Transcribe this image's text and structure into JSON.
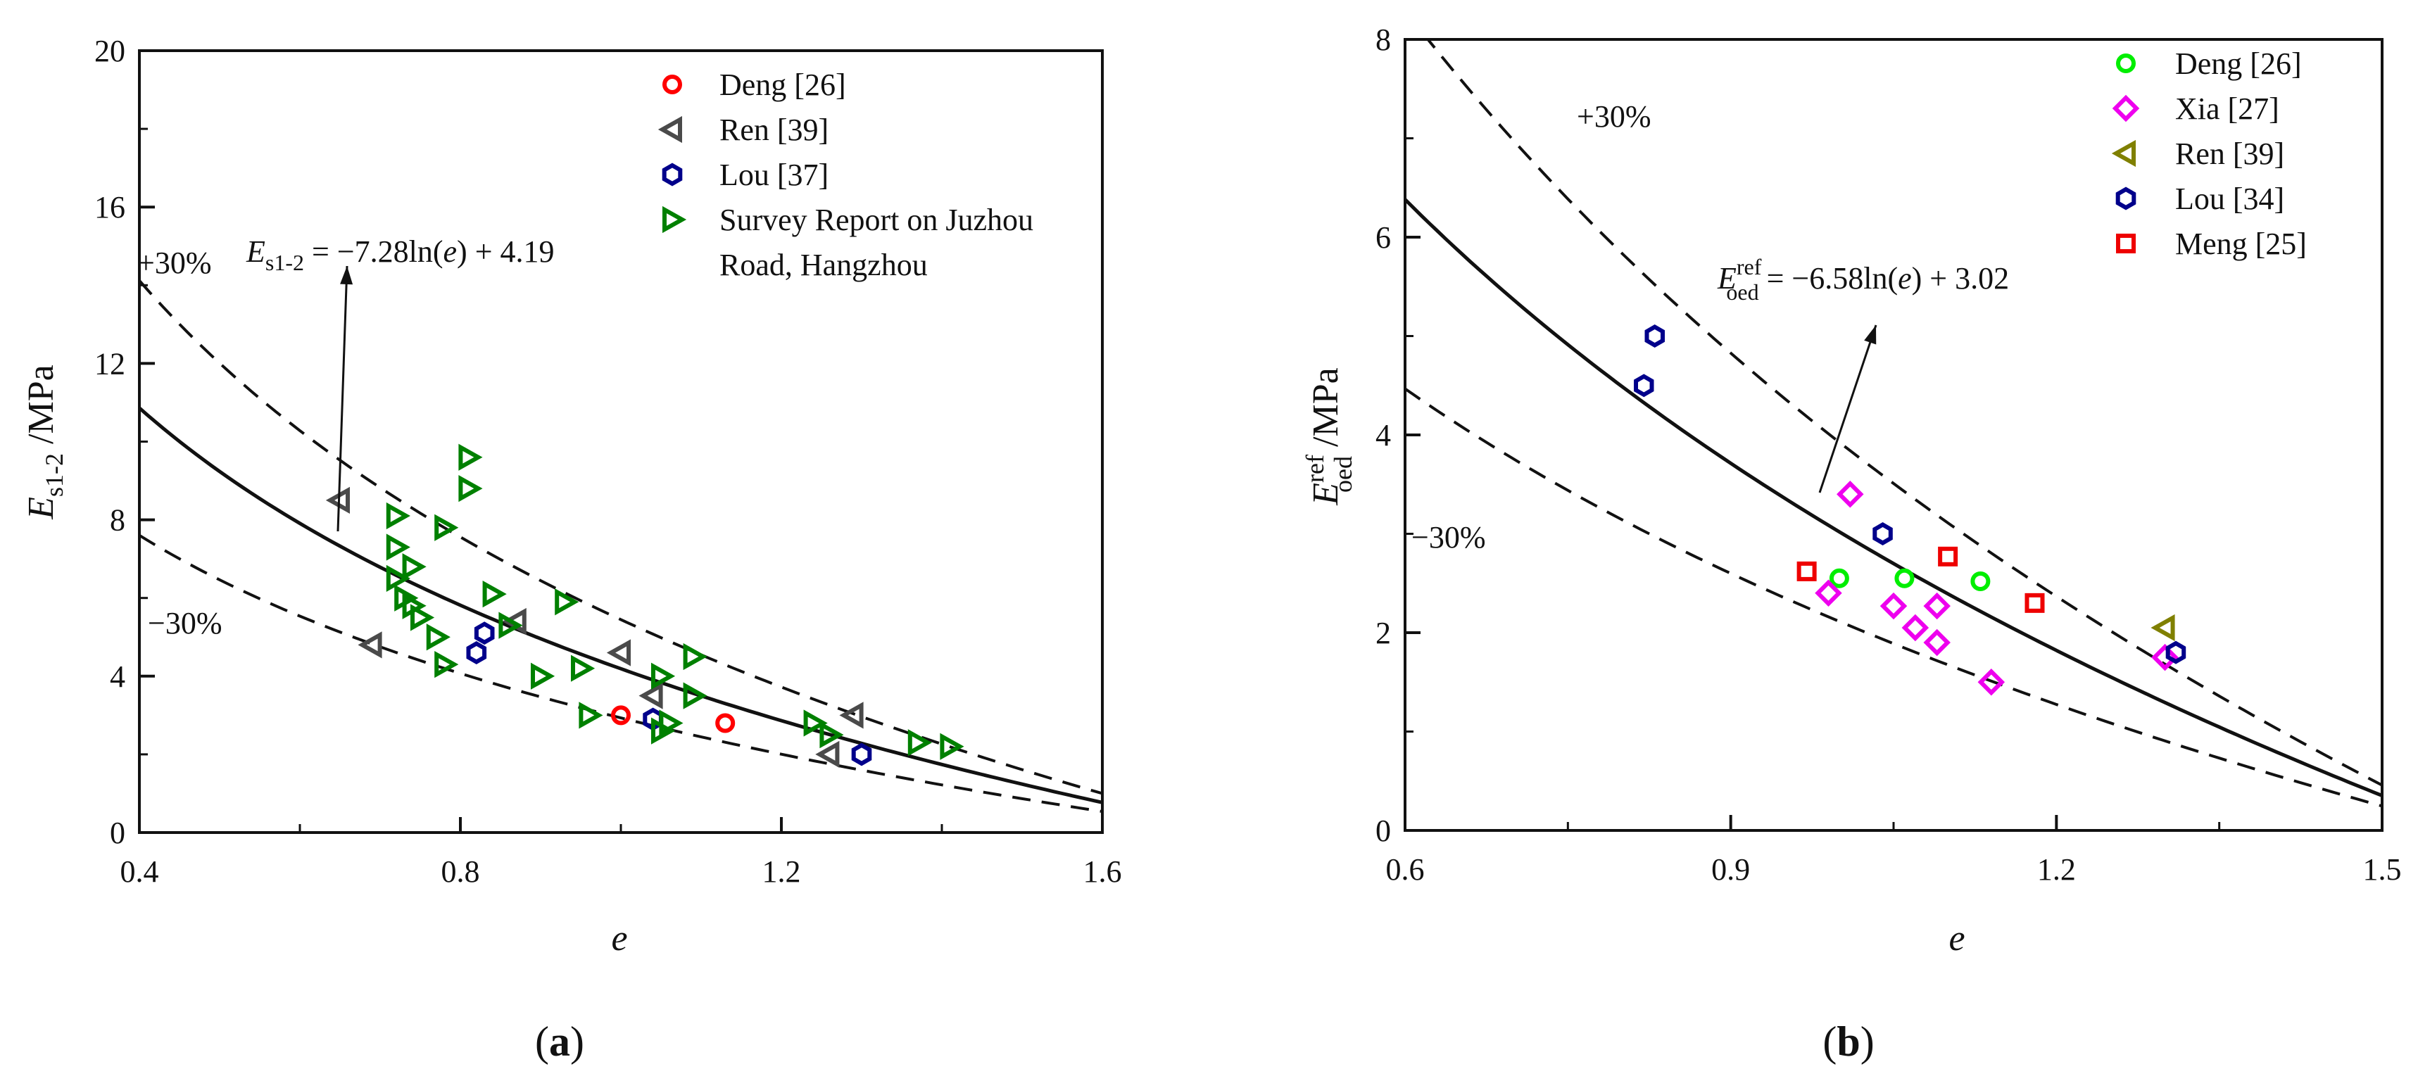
{
  "chart_data": [
    {
      "panel": "a",
      "panel_label": "(a)",
      "type": "scatter",
      "xlabel": "e",
      "ylabel": {
        "main": "E",
        "sub": "s1-2",
        "unit": " /MPa"
      },
      "xlim": [
        0.4,
        1.6
      ],
      "ylim": [
        0,
        20
      ],
      "xticks": [
        "0.4",
        "0.8",
        "1.2",
        "1.6"
      ],
      "yticks": [
        "0",
        "4",
        "8",
        "12",
        "16",
        "20"
      ],
      "x_minor_step": 0.2,
      "y_minor_step": 2,
      "legend_position": "top-right",
      "fit": {
        "a": -7.28,
        "b": 4.19,
        "range": [
          0.4,
          1.6
        ]
      },
      "equation": {
        "lhs_main": "E",
        "lhs_sub": "s1-2",
        "rhs_pre": " = −7.28ln(",
        "rhs_var": "e",
        "rhs_post": ") + 4.19"
      },
      "plus_label": "+30%",
      "minus_label": "−30%",
      "series": [
        {
          "name": "Deng [26]",
          "marker": "circle",
          "color": "#ff0000",
          "points": [
            [
              1.0,
              3.0
            ],
            [
              1.13,
              2.8
            ]
          ]
        },
        {
          "name": "Ren [39]",
          "marker": "triangle-left",
          "color": "#4a4a4a",
          "points": [
            [
              0.65,
              8.5
            ],
            [
              0.69,
              4.8
            ],
            [
              0.87,
              5.4
            ],
            [
              1.0,
              4.6
            ],
            [
              1.04,
              3.5
            ],
            [
              1.26,
              2.0
            ],
            [
              1.29,
              3.0
            ]
          ]
        },
        {
          "name": "Lou [37]",
          "marker": "hexagon",
          "color": "#00008b",
          "points": [
            [
              0.82,
              4.6
            ],
            [
              0.83,
              5.1
            ],
            [
              1.04,
              2.9
            ],
            [
              1.3,
              2.0
            ]
          ]
        },
        {
          "name": "Survey Report on Juzhou Road, Hangzhou",
          "legend_lines": [
            "Survey Report on Juzhou",
            "Road, Hangzhou"
          ],
          "marker": "triangle-right",
          "color": "#008000",
          "points": [
            [
              0.72,
              8.1
            ],
            [
              0.72,
              7.3
            ],
            [
              0.72,
              6.5
            ],
            [
              0.73,
              6.0
            ],
            [
              0.74,
              6.8
            ],
            [
              0.74,
              5.8
            ],
            [
              0.75,
              5.5
            ],
            [
              0.77,
              5.0
            ],
            [
              0.78,
              7.8
            ],
            [
              0.78,
              4.3
            ],
            [
              0.81,
              9.6
            ],
            [
              0.81,
              8.8
            ],
            [
              0.84,
              6.1
            ],
            [
              0.86,
              5.3
            ],
            [
              0.9,
              4.0
            ],
            [
              0.93,
              5.9
            ],
            [
              0.95,
              4.2
            ],
            [
              0.96,
              3.0
            ],
            [
              1.05,
              4.0
            ],
            [
              1.05,
              2.6
            ],
            [
              1.06,
              2.8
            ],
            [
              1.09,
              4.5
            ],
            [
              1.09,
              3.5
            ],
            [
              1.24,
              2.8
            ],
            [
              1.26,
              2.5
            ],
            [
              1.37,
              2.3
            ],
            [
              1.41,
              2.2
            ]
          ]
        }
      ]
    },
    {
      "panel": "b",
      "panel_label": "(b)",
      "type": "scatter",
      "xlabel": "e",
      "ylabel": {
        "main": "E",
        "sup": "ref",
        "sub": "oed",
        "unit": " /MPa"
      },
      "xlim": [
        0.6,
        1.5
      ],
      "ylim": [
        0,
        8
      ],
      "xticks": [
        "0.6",
        "0.9",
        "1.2",
        "1.5"
      ],
      "yticks": [
        "0",
        "2",
        "4",
        "6",
        "8"
      ],
      "x_minor_step": 0.15,
      "y_minor_step": 1,
      "legend_position": "top-right",
      "fit": {
        "a": -6.58,
        "b": 3.02,
        "range": [
          0.6,
          1.5
        ]
      },
      "equation": {
        "lhs_main": "E",
        "lhs_sup": "ref",
        "lhs_sub": "oed",
        "rhs_pre": " = −6.58ln(",
        "rhs_var": "e",
        "rhs_post": ") + 3.02"
      },
      "plus_label": "+30%",
      "minus_label": "−30%",
      "series": [
        {
          "name": "Deng [26]",
          "marker": "circle",
          "color": "#00ee00",
          "points": [
            [
              1.0,
              2.55
            ],
            [
              1.06,
              2.55
            ],
            [
              1.13,
              2.52
            ]
          ]
        },
        {
          "name": "Xia [27]",
          "marker": "diamond",
          "color": "#ee00ee",
          "points": [
            [
              0.99,
              2.4
            ],
            [
              1.01,
              3.4
            ],
            [
              1.05,
              2.27
            ],
            [
              1.07,
              2.05
            ],
            [
              1.09,
              2.27
            ],
            [
              1.09,
              1.9
            ],
            [
              1.14,
              1.5
            ],
            [
              1.3,
              1.75
            ]
          ]
        },
        {
          "name": "Ren [39]",
          "marker": "triangle-left",
          "color": "#808000",
          "points": [
            [
              1.3,
              2.05
            ]
          ]
        },
        {
          "name": "Lou [34]",
          "marker": "hexagon",
          "color": "#00008b",
          "points": [
            [
              0.82,
              4.5
            ],
            [
              0.83,
              5.0
            ],
            [
              1.04,
              3.0
            ],
            [
              1.31,
              1.8
            ]
          ]
        },
        {
          "name": "Meng [25]",
          "marker": "square",
          "color": "#ee0000",
          "points": [
            [
              0.97,
              2.62
            ],
            [
              1.1,
              2.77
            ],
            [
              1.18,
              2.3
            ]
          ]
        }
      ]
    }
  ]
}
